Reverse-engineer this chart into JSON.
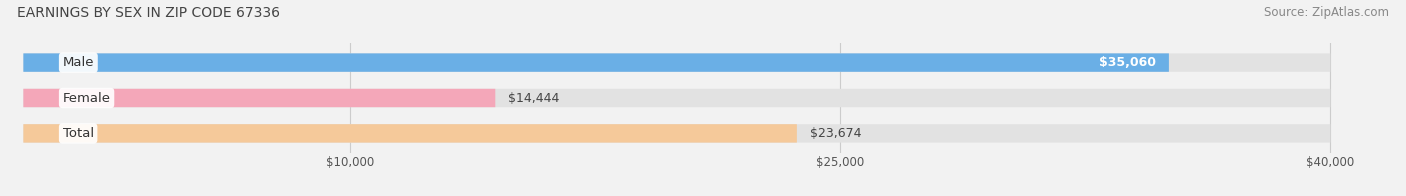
{
  "title": "EARNINGS BY SEX IN ZIP CODE 67336",
  "source": "Source: ZipAtlas.com",
  "categories": [
    "Male",
    "Female",
    "Total"
  ],
  "values": [
    35060,
    14444,
    23674
  ],
  "max_value": 40000,
  "bar_colors": [
    "#6aafe6",
    "#f4a7b9",
    "#f5c99a"
  ],
  "value_labels": [
    "$35,060",
    "$14,444",
    "$23,674"
  ],
  "value_label_inside": [
    true,
    false,
    false
  ],
  "x_ticks": [
    10000,
    25000,
    40000
  ],
  "x_tick_labels": [
    "$10,000",
    "$25,000",
    "$40,000"
  ],
  "background_color": "#f2f2f2",
  "bar_background_color": "#e2e2e2",
  "title_fontsize": 10,
  "source_fontsize": 8.5,
  "cat_label_fontsize": 9.5,
  "value_fontsize": 9
}
